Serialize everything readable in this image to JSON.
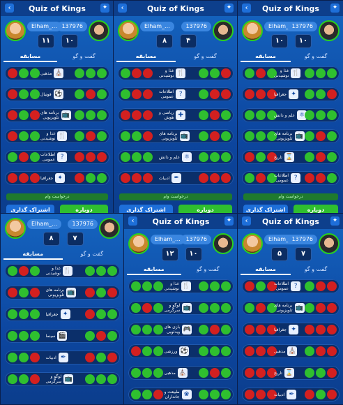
{
  "app": {
    "title": "Quiz of Kings"
  },
  "labels": {
    "tab_active": "مسابقه",
    "tab_chat": "گفت و گو",
    "share": "اشتراک گذاری",
    "rematch": "دوباره",
    "pending_game": "درخواست وام"
  },
  "panels": [
    {
      "id": "p1",
      "player": "Elham_...",
      "opponent": "137976",
      "score_left": "۱۱",
      "score_right": "۱۰",
      "rows": [
        {
          "cat": "مذهبی",
          "icon": "⛪",
          "left": [
            "r",
            "g",
            "g"
          ],
          "right": [
            "g",
            "g",
            "g"
          ]
        },
        {
          "cat": "فوتبال",
          "icon": "⚽",
          "left": [
            "r",
            "g",
            "g"
          ],
          "right": [
            "g",
            "r",
            "g"
          ]
        },
        {
          "cat": "برنامه های\nتلویزیونی",
          "icon": "📺",
          "left": [
            "r",
            "g",
            "r"
          ],
          "right": [
            "g",
            "g",
            "g"
          ]
        },
        {
          "cat": "غذا و\nنوشیدنی",
          "icon": "🍴",
          "left": [
            "r",
            "g",
            "g"
          ],
          "right": [
            "g",
            "r",
            "g"
          ]
        },
        {
          "cat": "اطلاعات\nعمومی",
          "icon": "?",
          "left": [
            "g",
            "r",
            "g"
          ],
          "right": [
            "r",
            "r",
            "r"
          ]
        },
        {
          "cat": "جغرافیا",
          "icon": "✦",
          "left": [
            "r",
            "r",
            "r"
          ],
          "right": [
            "r",
            "g",
            "g"
          ]
        }
      ]
    },
    {
      "id": "p2",
      "player": "Elham_...",
      "opponent": "137976",
      "score_left": "۸",
      "score_right": "۴",
      "rows": [
        {
          "cat": "غذا و\nنوشیدنی",
          "icon": "🍴",
          "left": [
            "g",
            "r",
            "r"
          ],
          "right": [
            "g",
            "g",
            "r"
          ]
        },
        {
          "cat": "اطلاعات\nعمومی",
          "icon": "?",
          "left": [
            "g",
            "r",
            "r"
          ],
          "right": [
            "g",
            "r",
            "r"
          ]
        },
        {
          "cat": "ریاضی و\nهوش",
          "icon": "✚",
          "left": [
            "r",
            "r",
            "r"
          ],
          "right": [
            "g",
            "r",
            "g"
          ]
        },
        {
          "cat": "برنامه های\nتلویزیونی",
          "icon": "📺",
          "left": [
            "g",
            "g",
            "r"
          ],
          "right": [
            "g",
            "r",
            "g"
          ]
        },
        {
          "cat": "علم و دانش",
          "icon": "⚛",
          "left": [
            "g",
            "g",
            "g"
          ],
          "right": [
            "g",
            "g",
            "g"
          ]
        },
        {
          "cat": "ادبیات",
          "icon": "✒",
          "left": [
            "r",
            "r",
            "r"
          ],
          "right": [
            "r",
            "r",
            "r"
          ]
        }
      ]
    },
    {
      "id": "p3",
      "player": "Elham_...",
      "opponent": "137976",
      "score_left": "۱۰",
      "score_right": "۱۰",
      "rows": [
        {
          "cat": "غذا و\nنوشیدنی",
          "icon": "🍴",
          "left": [
            "g",
            "r",
            "g"
          ],
          "right": [
            "g",
            "g",
            "g"
          ]
        },
        {
          "cat": "جغرافیا",
          "icon": "✦",
          "left": [
            "r",
            "r",
            "r"
          ],
          "right": [
            "g",
            "g",
            "r"
          ]
        },
        {
          "cat": "علم و دانش",
          "icon": "⚛",
          "left": [
            "g",
            "g",
            "g"
          ],
          "right": [
            "g",
            "g",
            "g"
          ]
        },
        {
          "cat": "برنامه های\nتلویزیونی",
          "icon": "📺",
          "left": [
            "g",
            "g",
            "g"
          ],
          "right": [
            "g",
            "r",
            "g"
          ]
        },
        {
          "cat": "تاریخ",
          "icon": "⌛",
          "left": [
            "r",
            "g",
            "r"
          ],
          "right": [
            "g",
            "r",
            "g"
          ]
        },
        {
          "cat": "اطلاعات\nعمومی",
          "icon": "?",
          "left": [
            "g",
            "r",
            "g"
          ],
          "right": [
            "r",
            "r",
            "g"
          ]
        }
      ]
    },
    {
      "id": "p4",
      "player": "Elham_...",
      "opponent": "137976",
      "score_left": "۸",
      "score_right": "۷",
      "rows": [
        {
          "cat": "غذا و\nنوشیدنی",
          "icon": "🍴",
          "left": [
            "g",
            "r",
            "g"
          ],
          "right": [
            "g",
            "g",
            "g"
          ]
        },
        {
          "cat": "برنامه های\nتلویزیونی",
          "icon": "📺",
          "left": [
            "r",
            "g",
            "r"
          ],
          "right": [
            "r",
            "g",
            "r"
          ]
        },
        {
          "cat": "جغرافیا",
          "icon": "✦",
          "left": [
            "g",
            "g",
            "g"
          ],
          "right": [
            "r",
            "g",
            "g"
          ]
        },
        {
          "cat": "سینما",
          "icon": "🎬",
          "left": [
            "g",
            "g",
            "g"
          ],
          "right": [
            "g",
            "r",
            "g"
          ]
        },
        {
          "cat": "ادبیات",
          "icon": "✒",
          "left": [
            "g",
            "g",
            "r"
          ],
          "right": [
            "r",
            "g",
            "r"
          ]
        },
        {
          "cat": "لوگو و\nسرگرمی",
          "icon": "📺",
          "left": [
            "g",
            "g",
            "r"
          ],
          "right": [
            "g",
            "g",
            "g"
          ]
        }
      ]
    },
    {
      "id": "p5",
      "player": "Elham_...",
      "opponent": "137976",
      "score_left": "۱۲",
      "score_right": "۱۰",
      "rows": [
        {
          "cat": "غذا و\nنوشیدنی",
          "icon": "🍴",
          "left": [
            "g",
            "g",
            "g"
          ],
          "right": [
            "g",
            "g",
            "g"
          ]
        },
        {
          "cat": "لوگو و\nسرگرمی",
          "icon": "📺",
          "left": [
            "g",
            "r",
            "g"
          ],
          "right": [
            "g",
            "g",
            "g"
          ]
        },
        {
          "cat": "بازی های\nویدئویی",
          "icon": "🎮",
          "left": [
            "g",
            "g",
            "g"
          ],
          "right": [
            "g",
            "r",
            "g"
          ]
        },
        {
          "cat": "ورزشی",
          "icon": "⚽",
          "left": [
            "r",
            "g",
            "g"
          ],
          "right": [
            "g",
            "g",
            "g"
          ]
        },
        {
          "cat": "مذهبی",
          "icon": "⛪",
          "left": [
            "g",
            "g",
            "g"
          ],
          "right": [
            "g",
            "r",
            "g"
          ]
        },
        {
          "cat": "طبیعت و\nجانداران",
          "icon": "❀",
          "left": [
            "g",
            "g",
            "r"
          ],
          "right": [
            "g",
            "g",
            "g"
          ]
        }
      ]
    },
    {
      "id": "p6",
      "player": "Elham_...",
      "opponent": "137976",
      "score_left": "۵",
      "score_right": "۷",
      "rows": [
        {
          "cat": "اطلاعات\nعمومی",
          "icon": "?",
          "left": [
            "r",
            "g",
            "r"
          ],
          "right": [
            "g",
            "r",
            "r"
          ]
        },
        {
          "cat": "برنامه های\nتلویزیونی",
          "icon": "📺",
          "left": [
            "g",
            "r",
            "g"
          ],
          "right": [
            "g",
            "r",
            "r"
          ]
        },
        {
          "cat": "جغرافیا",
          "icon": "✦",
          "left": [
            "r",
            "r",
            "r"
          ],
          "right": [
            "r",
            "r",
            "r"
          ]
        },
        {
          "cat": "مذهبی",
          "icon": "⛪",
          "left": [
            "r",
            "r",
            "r"
          ],
          "right": [
            "g",
            "r",
            "r"
          ]
        },
        {
          "cat": "تاریخ",
          "icon": "⌛",
          "left": [
            "r",
            "r",
            "r"
          ],
          "right": [
            "g",
            "g",
            "r"
          ]
        },
        {
          "cat": "ادبیات",
          "icon": "✒",
          "left": [
            "r",
            "r",
            "r"
          ],
          "right": [
            "r",
            "g",
            "r"
          ]
        }
      ]
    }
  ]
}
